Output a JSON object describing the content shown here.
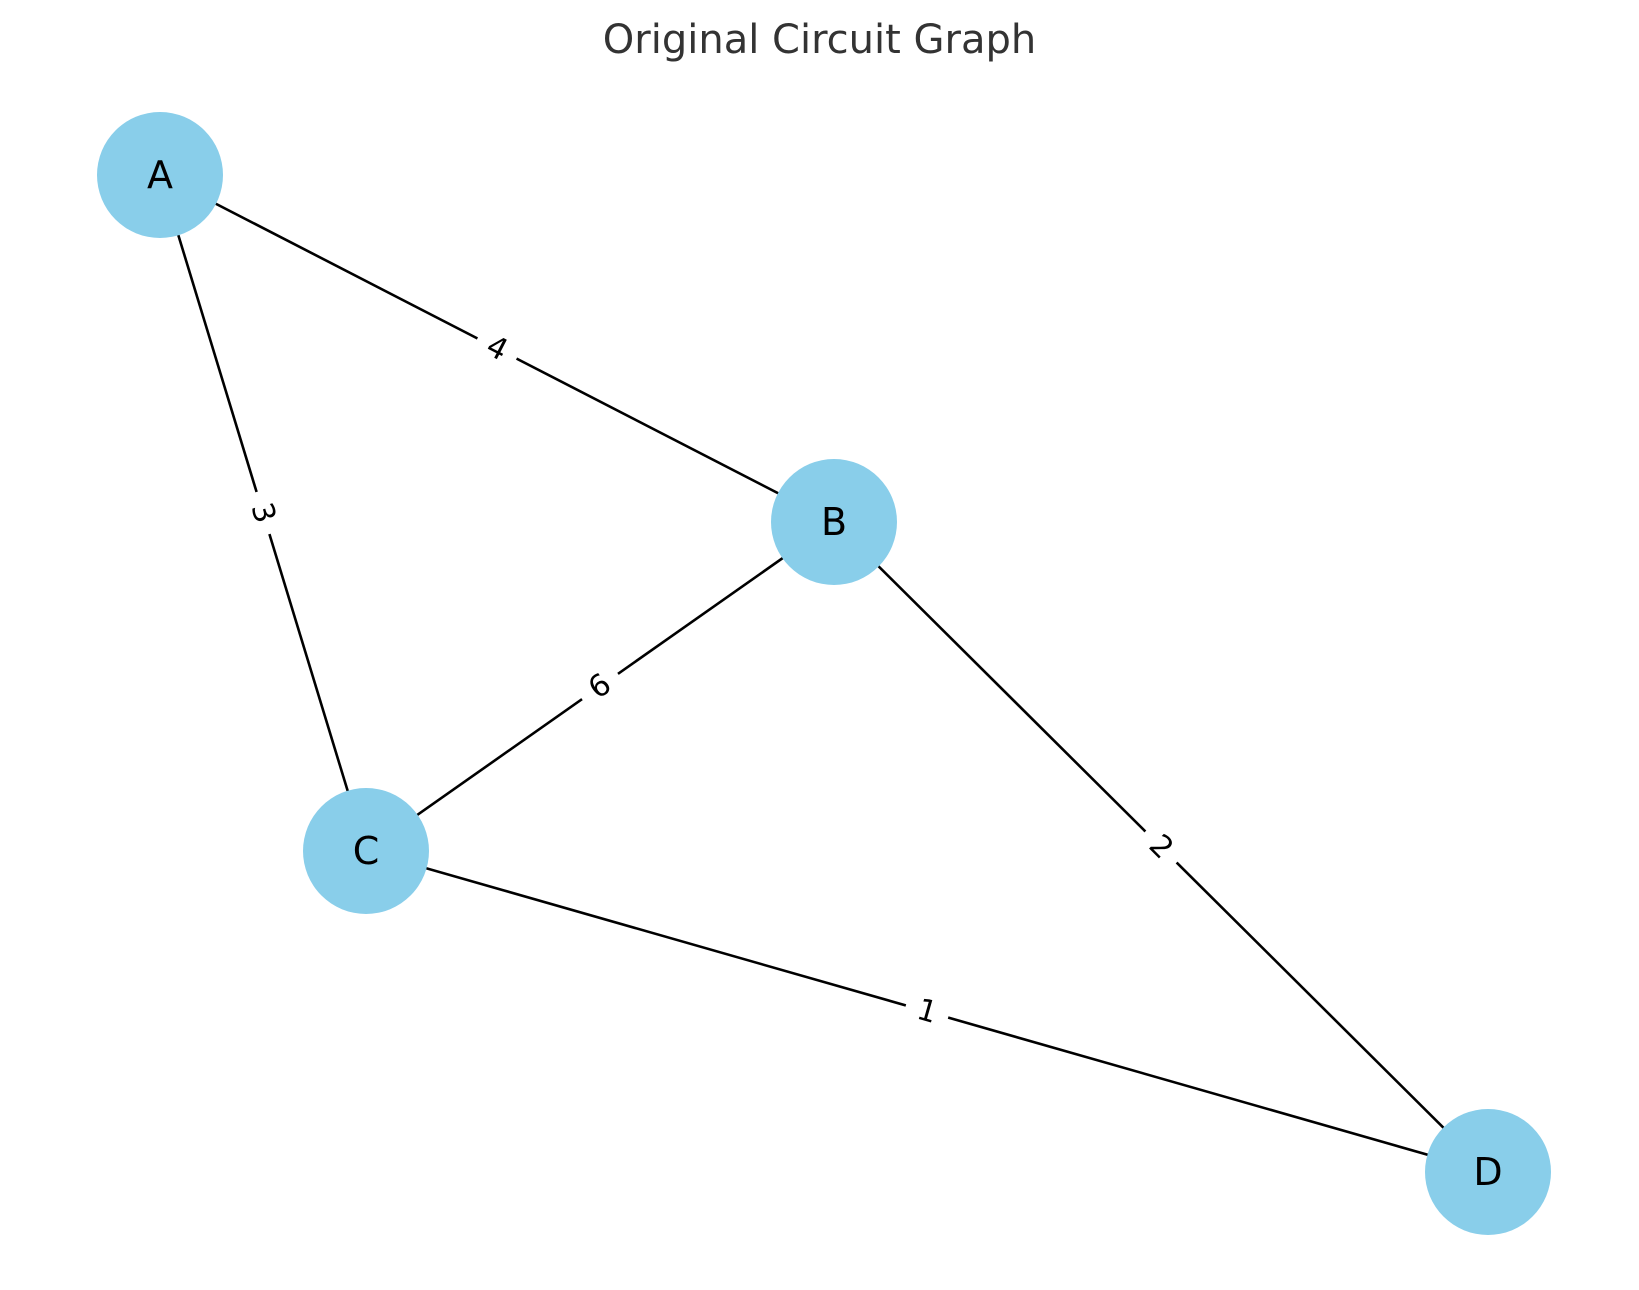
{
  "title": "Original Circuit Graph",
  "colors": {
    "node_fill": "#89CEEA",
    "edge": "#000000",
    "title": "#333333"
  },
  "nodes": [
    {
      "id": "A",
      "label": "A"
    },
    {
      "id": "B",
      "label": "B"
    },
    {
      "id": "C",
      "label": "C"
    },
    {
      "id": "D",
      "label": "D"
    }
  ],
  "edges": [
    {
      "source": "A",
      "target": "B",
      "weight": "4"
    },
    {
      "source": "A",
      "target": "C",
      "weight": "3"
    },
    {
      "source": "B",
      "target": "C",
      "weight": "6"
    },
    {
      "source": "B",
      "target": "D",
      "weight": "2"
    },
    {
      "source": "C",
      "target": "D",
      "weight": "1"
    }
  ]
}
